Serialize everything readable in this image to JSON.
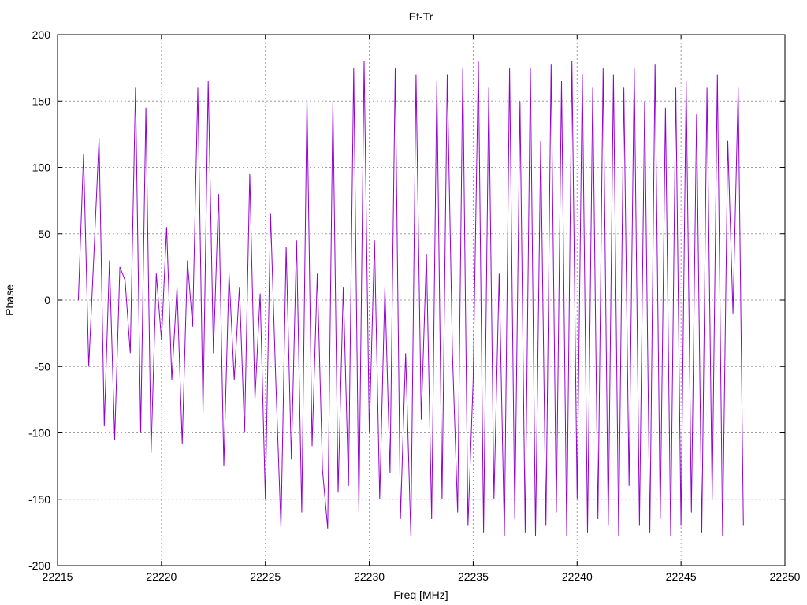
{
  "chart_data": {
    "type": "line",
    "title": "Ef-Tr",
    "xlabel": "Freq [MHz]",
    "ylabel": "Phase",
    "xlim": [
      22215,
      22250
    ],
    "ylim": [
      -200,
      200
    ],
    "x_ticks": [
      "22215",
      "22220",
      "22225",
      "22230",
      "22235",
      "22240",
      "22245",
      "22250"
    ],
    "y_ticks": [
      "-200",
      "-150",
      "-100",
      "-50",
      "0",
      "50",
      "100",
      "150",
      "200"
    ],
    "grid": true,
    "legend": "none",
    "series_color": "#9400d3",
    "series": [
      {
        "points": [
          [
            22216.0,
            0
          ],
          [
            22216.25,
            110
          ],
          [
            22216.5,
            -50
          ],
          [
            22216.75,
            35
          ],
          [
            22217.0,
            122
          ],
          [
            22217.25,
            -95
          ],
          [
            22217.5,
            30
          ],
          [
            22217.75,
            -105
          ],
          [
            22218.0,
            25
          ],
          [
            22218.25,
            15
          ],
          [
            22218.5,
            -40
          ],
          [
            22218.75,
            160
          ],
          [
            22219.0,
            -100
          ],
          [
            22219.25,
            145
          ],
          [
            22219.5,
            -115
          ],
          [
            22219.75,
            20
          ],
          [
            22220.0,
            -30
          ],
          [
            22220.25,
            55
          ],
          [
            22220.5,
            -60
          ],
          [
            22220.75,
            10
          ],
          [
            22221.0,
            -108
          ],
          [
            22221.25,
            30
          ],
          [
            22221.5,
            -20
          ],
          [
            22221.75,
            160
          ],
          [
            22222.0,
            -85
          ],
          [
            22222.25,
            165
          ],
          [
            22222.5,
            -40
          ],
          [
            22222.75,
            80
          ],
          [
            22223.0,
            -125
          ],
          [
            22223.25,
            20
          ],
          [
            22223.5,
            -60
          ],
          [
            22223.75,
            10
          ],
          [
            22224.0,
            -100
          ],
          [
            22224.25,
            95
          ],
          [
            22224.5,
            -75
          ],
          [
            22224.75,
            5
          ],
          [
            22225.0,
            -150
          ],
          [
            22225.25,
            65
          ],
          [
            22225.5,
            -60
          ],
          [
            22225.75,
            -172
          ],
          [
            22226.0,
            40
          ],
          [
            22226.25,
            -120
          ],
          [
            22226.5,
            45
          ],
          [
            22226.75,
            -160
          ],
          [
            22227.0,
            152
          ],
          [
            22227.25,
            -110
          ],
          [
            22227.5,
            20
          ],
          [
            22227.75,
            -128
          ],
          [
            22228.0,
            -172
          ],
          [
            22228.25,
            150
          ],
          [
            22228.5,
            -145
          ],
          [
            22228.75,
            10
          ],
          [
            22229.0,
            -140
          ],
          [
            22229.25,
            175
          ],
          [
            22229.5,
            -160
          ],
          [
            22229.75,
            180
          ],
          [
            22230.0,
            -100
          ],
          [
            22230.25,
            45
          ],
          [
            22230.5,
            -150
          ],
          [
            22230.75,
            10
          ],
          [
            22231.0,
            -130
          ],
          [
            22231.25,
            175
          ],
          [
            22231.5,
            -165
          ],
          [
            22231.75,
            -40
          ],
          [
            22232.0,
            -178
          ],
          [
            22232.25,
            170
          ],
          [
            22232.5,
            -90
          ],
          [
            22232.75,
            35
          ],
          [
            22233.0,
            -165
          ],
          [
            22233.25,
            165
          ],
          [
            22233.5,
            -150
          ],
          [
            22233.75,
            170
          ],
          [
            22234.0,
            -40
          ],
          [
            22234.25,
            -160
          ],
          [
            22234.5,
            175
          ],
          [
            22234.75,
            -170
          ],
          [
            22235.0,
            -60
          ],
          [
            22235.25,
            180
          ],
          [
            22235.5,
            -175
          ],
          [
            22235.75,
            160
          ],
          [
            22236.0,
            -150
          ],
          [
            22236.25,
            20
          ],
          [
            22236.5,
            -178
          ],
          [
            22236.75,
            175
          ],
          [
            22237.0,
            -165
          ],
          [
            22237.25,
            150
          ],
          [
            22237.5,
            -175
          ],
          [
            22237.75,
            175
          ],
          [
            22238.0,
            -178
          ],
          [
            22238.25,
            120
          ],
          [
            22238.5,
            -170
          ],
          [
            22238.75,
            178
          ],
          [
            22239.0,
            -160
          ],
          [
            22239.25,
            165
          ],
          [
            22239.5,
            -178
          ],
          [
            22239.75,
            180
          ],
          [
            22240.0,
            -150
          ],
          [
            22240.25,
            170
          ],
          [
            22240.5,
            -175
          ],
          [
            22240.75,
            160
          ],
          [
            22241.0,
            -165
          ],
          [
            22241.25,
            175
          ],
          [
            22241.5,
            -170
          ],
          [
            22241.75,
            170
          ],
          [
            22242.0,
            -178
          ],
          [
            22242.25,
            160
          ],
          [
            22242.5,
            -140
          ],
          [
            22242.75,
            175
          ],
          [
            22243.0,
            -170
          ],
          [
            22243.25,
            150
          ],
          [
            22243.5,
            -175
          ],
          [
            22243.75,
            178
          ],
          [
            22244.0,
            -165
          ],
          [
            22244.25,
            145
          ],
          [
            22244.5,
            -178
          ],
          [
            22244.75,
            160
          ],
          [
            22245.0,
            -170
          ],
          [
            22245.25,
            165
          ],
          [
            22245.5,
            -160
          ],
          [
            22245.75,
            140
          ],
          [
            22246.0,
            -175
          ],
          [
            22246.25,
            160
          ],
          [
            22246.5,
            -150
          ],
          [
            22246.75,
            170
          ],
          [
            22247.0,
            -178
          ],
          [
            22247.25,
            120
          ],
          [
            22247.5,
            -10
          ],
          [
            22247.75,
            160
          ],
          [
            22248.0,
            -170
          ]
        ]
      }
    ]
  }
}
